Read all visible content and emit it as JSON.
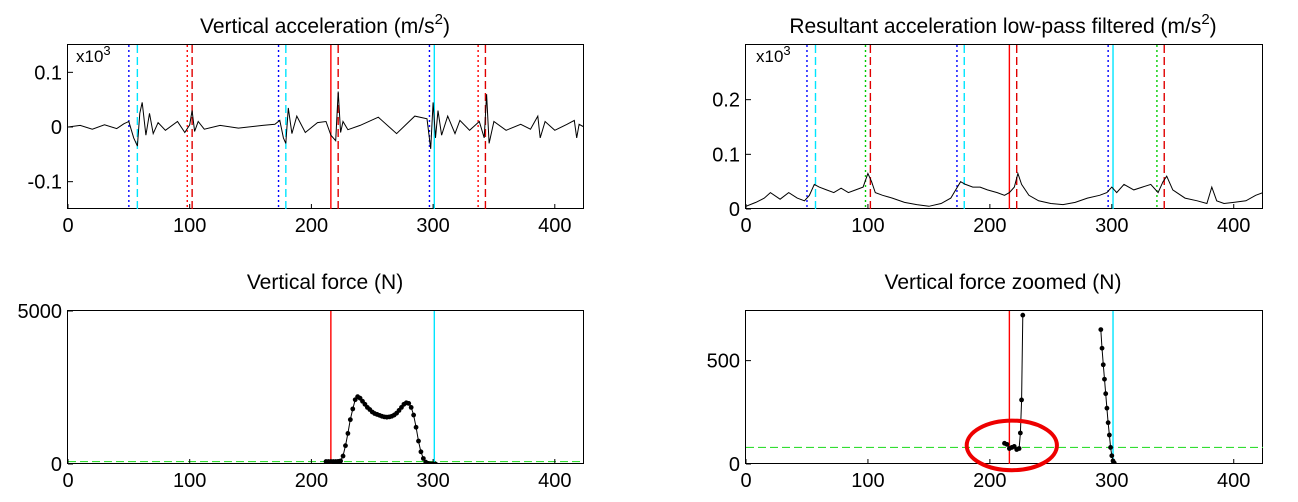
{
  "colors": {
    "black": "#000000",
    "red": "#ff0000",
    "cyan": "#00e5ff",
    "blue": "#0000ff",
    "green": "#00cc00",
    "dark_red": "#e00000",
    "dashed_green": "#33dd33",
    "annotation_red": "#ee0000"
  },
  "chart_data": [
    {
      "id": "vertical-acceleration",
      "type": "line",
      "title": "Vertical acceleration (m/s",
      "title_sup": "2",
      "title_suffix": ")",
      "multiplier": "x10",
      "multiplier_sup": "3",
      "xlim": [
        0,
        424
      ],
      "ylim": [
        -0.15,
        0.15
      ],
      "xticks": [
        0,
        100,
        200,
        300,
        400
      ],
      "xtick_labels": [
        "0",
        "100",
        "200",
        "300",
        "400"
      ],
      "yticks": [
        -0.1,
        0,
        0.1
      ],
      "ytick_labels": [
        "-0.1",
        "0",
        "0.1"
      ],
      "grid": false,
      "series": [
        {
          "style": "line",
          "color": "#000000",
          "x": [
            0,
            10,
            20,
            30,
            40,
            46,
            50,
            54,
            57,
            59,
            61,
            64,
            67,
            70,
            74,
            80,
            90,
            96,
            100,
            102,
            104,
            107,
            112,
            125,
            140,
            160,
            170,
            174,
            177,
            179,
            181,
            184,
            188,
            195,
            205,
            212,
            216,
            220,
            222,
            224,
            226,
            230,
            240,
            255,
            270,
            285,
            295,
            298,
            300,
            302,
            304,
            307,
            312,
            318,
            322,
            330,
            338,
            342,
            344,
            346,
            350,
            360,
            372,
            380,
            386,
            388,
            392,
            400,
            410,
            416,
            418,
            420,
            424
          ],
          "y": [
            0,
            0.003,
            -0.004,
            0.004,
            -0.003,
            0.006,
            0.01,
            -0.02,
            -0.035,
            0.025,
            0.045,
            -0.015,
            0.025,
            -0.012,
            0.008,
            -0.006,
            0.01,
            -0.01,
            0.004,
            0.03,
            -0.008,
            0.01,
            -0.004,
            0.003,
            -0.002,
            0.003,
            0.005,
            0.012,
            -0.02,
            -0.03,
            0.035,
            -0.012,
            0.02,
            -0.01,
            0.008,
            0.01,
            -0.015,
            -0.025,
            0.065,
            -0.01,
            0.01,
            -0.005,
            0.003,
            0.018,
            -0.012,
            0.02,
            0.015,
            -0.04,
            0.045,
            -0.02,
            0.03,
            -0.015,
            0.02,
            -0.012,
            0.012,
            -0.006,
            0.01,
            -0.02,
            0.06,
            -0.03,
            0.01,
            -0.006,
            0.005,
            -0.004,
            0.02,
            -0.02,
            0.01,
            -0.006,
            0.005,
            0.012,
            -0.02,
            0.005,
            0
          ]
        }
      ],
      "vlines": [
        {
          "x": 50,
          "color": "#0000ff",
          "dash": "dot"
        },
        {
          "x": 57,
          "color": "#00e5ff",
          "dash": "dash"
        },
        {
          "x": 98,
          "color": "#ff0000",
          "dash": "dot"
        },
        {
          "x": 102,
          "color": "#e00000",
          "dash": "dash"
        },
        {
          "x": 173,
          "color": "#0000ff",
          "dash": "dot"
        },
        {
          "x": 179,
          "color": "#00e5ff",
          "dash": "dash"
        },
        {
          "x": 216,
          "color": "#ff0000",
          "dash": "solid"
        },
        {
          "x": 222,
          "color": "#e00000",
          "dash": "dash"
        },
        {
          "x": 297,
          "color": "#0000ff",
          "dash": "dot"
        },
        {
          "x": 301,
          "color": "#00e5ff",
          "dash": "solid"
        },
        {
          "x": 337,
          "color": "#ff0000",
          "dash": "dot"
        },
        {
          "x": 343,
          "color": "#e00000",
          "dash": "dash"
        }
      ]
    },
    {
      "id": "resultant-acceleration",
      "type": "line",
      "title": "Resultant acceleration low-pass filtered (m/s",
      "title_sup": "2",
      "title_suffix": ")",
      "multiplier": "x10",
      "multiplier_sup": "3",
      "xlim": [
        0,
        424
      ],
      "ylim": [
        0,
        0.3
      ],
      "xticks": [
        0,
        100,
        200,
        300,
        400
      ],
      "xtick_labels": [
        "0",
        "100",
        "200",
        "300",
        "400"
      ],
      "yticks": [
        0,
        0.1,
        0.2
      ],
      "ytick_labels": [
        "0",
        "0.1",
        "0.2"
      ],
      "grid": false,
      "series": [
        {
          "style": "line",
          "color": "#000000",
          "x": [
            0,
            8,
            15,
            20,
            28,
            35,
            42,
            48,
            52,
            56,
            60,
            66,
            72,
            78,
            84,
            90,
            96,
            100,
            103,
            106,
            112,
            120,
            130,
            140,
            150,
            160,
            168,
            172,
            176,
            180,
            186,
            192,
            198,
            206,
            212,
            216,
            220,
            223,
            226,
            232,
            240,
            250,
            260,
            270,
            280,
            290,
            296,
            300,
            304,
            310,
            318,
            325,
            332,
            338,
            342,
            345,
            350,
            360,
            370,
            378,
            382,
            386,
            392,
            400,
            410,
            418,
            424
          ],
          "y": [
            0.005,
            0.012,
            0.02,
            0.03,
            0.018,
            0.03,
            0.02,
            0.015,
            0.025,
            0.045,
            0.04,
            0.035,
            0.03,
            0.038,
            0.03,
            0.035,
            0.04,
            0.065,
            0.05,
            0.03,
            0.025,
            0.02,
            0.012,
            0.008,
            0.005,
            0.01,
            0.02,
            0.035,
            0.05,
            0.045,
            0.04,
            0.04,
            0.035,
            0.03,
            0.025,
            0.03,
            0.04,
            0.065,
            0.045,
            0.025,
            0.015,
            0.01,
            0.008,
            0.012,
            0.02,
            0.025,
            0.03,
            0.04,
            0.03,
            0.045,
            0.035,
            0.04,
            0.045,
            0.03,
            0.05,
            0.06,
            0.035,
            0.02,
            0.015,
            0.01,
            0.04,
            0.015,
            0.01,
            0.012,
            0.015,
            0.025,
            0.03
          ]
        }
      ],
      "vlines": [
        {
          "x": 50,
          "color": "#0000ff",
          "dash": "dot"
        },
        {
          "x": 57,
          "color": "#00e5ff",
          "dash": "dash"
        },
        {
          "x": 98,
          "color": "#00cc00",
          "dash": "dot"
        },
        {
          "x": 102,
          "color": "#e00000",
          "dash": "dash"
        },
        {
          "x": 173,
          "color": "#0000ff",
          "dash": "dot"
        },
        {
          "x": 179,
          "color": "#00e5ff",
          "dash": "dash"
        },
        {
          "x": 216,
          "color": "#ff0000",
          "dash": "solid"
        },
        {
          "x": 222,
          "color": "#e00000",
          "dash": "dash"
        },
        {
          "x": 297,
          "color": "#0000ff",
          "dash": "dot"
        },
        {
          "x": 301,
          "color": "#00e5ff",
          "dash": "solid"
        },
        {
          "x": 337,
          "color": "#00cc00",
          "dash": "dot"
        },
        {
          "x": 343,
          "color": "#e00000",
          "dash": "dash"
        }
      ]
    },
    {
      "id": "vertical-force",
      "type": "line",
      "title": "Vertical force (N)",
      "xlim": [
        0,
        424
      ],
      "ylim": [
        0,
        5000
      ],
      "xticks": [
        0,
        100,
        200,
        300,
        400
      ],
      "xtick_labels": [
        "0",
        "100",
        "200",
        "300",
        "400"
      ],
      "yticks": [
        0,
        5000
      ],
      "ytick_labels": [
        "0",
        "5000"
      ],
      "grid": false,
      "hlines": [
        {
          "y": 80,
          "color": "#33dd33",
          "dash": "dash"
        }
      ],
      "series": [
        {
          "style": "line-markers",
          "color": "#000000",
          "x": [
            212,
            214,
            216,
            218,
            220,
            222,
            224,
            226,
            228,
            230,
            232,
            234,
            236,
            238,
            240,
            242,
            244,
            246,
            248,
            250,
            252,
            254,
            256,
            258,
            260,
            262,
            264,
            266,
            268,
            270,
            272,
            274,
            276,
            278,
            280,
            282,
            284,
            286,
            288,
            290,
            292,
            294,
            296,
            298,
            300,
            302
          ],
          "y": [
            80,
            80,
            80,
            80,
            80,
            85,
            100,
            260,
            600,
            1000,
            1450,
            1800,
            2100,
            2200,
            2150,
            2050,
            1950,
            1850,
            1780,
            1700,
            1650,
            1620,
            1590,
            1560,
            1540,
            1530,
            1540,
            1560,
            1600,
            1660,
            1750,
            1850,
            1950,
            2000,
            1980,
            1850,
            1600,
            1200,
            750,
            400,
            180,
            60,
            20,
            5,
            0,
            0
          ]
        }
      ],
      "vlines": [
        {
          "x": 216,
          "color": "#ff0000",
          "dash": "solid"
        },
        {
          "x": 301,
          "color": "#00e5ff",
          "dash": "solid"
        }
      ]
    },
    {
      "id": "vertical-force-zoomed",
      "type": "line",
      "title": "Vertical force zoomed (N)",
      "xlim": [
        0,
        424
      ],
      "ylim": [
        0,
        740
      ],
      "xticks": [
        0,
        100,
        200,
        300,
        400
      ],
      "xtick_labels": [
        "0",
        "100",
        "200",
        "300",
        "400"
      ],
      "yticks": [
        0,
        500
      ],
      "ytick_labels": [
        "0",
        "500"
      ],
      "grid": false,
      "hlines": [
        {
          "y": 80,
          "color": "#33dd33",
          "dash": "dash"
        }
      ],
      "series": [
        {
          "style": "line-markers",
          "color": "#000000",
          "x": [
            212,
            214,
            216,
            218,
            220,
            222,
            224,
            225,
            226,
            227
          ],
          "y": [
            100,
            95,
            75,
            80,
            85,
            70,
            75,
            150,
            310,
            720
          ]
        },
        {
          "style": "line-markers",
          "color": "#000000",
          "x": [
            291,
            292,
            293,
            294,
            295,
            296,
            297,
            298,
            299,
            300,
            301,
            302
          ],
          "y": [
            650,
            560,
            480,
            410,
            340,
            270,
            200,
            140,
            80,
            40,
            15,
            5
          ]
        }
      ],
      "vlines": [
        {
          "x": 216,
          "color": "#ff0000",
          "dash": "solid"
        },
        {
          "x": 301,
          "color": "#00e5ff",
          "dash": "solid"
        }
      ],
      "annotation_ellipse": {
        "cx": 218,
        "cy": 90,
        "rx": 37,
        "ry": 120,
        "color": "#ee0000"
      }
    }
  ]
}
